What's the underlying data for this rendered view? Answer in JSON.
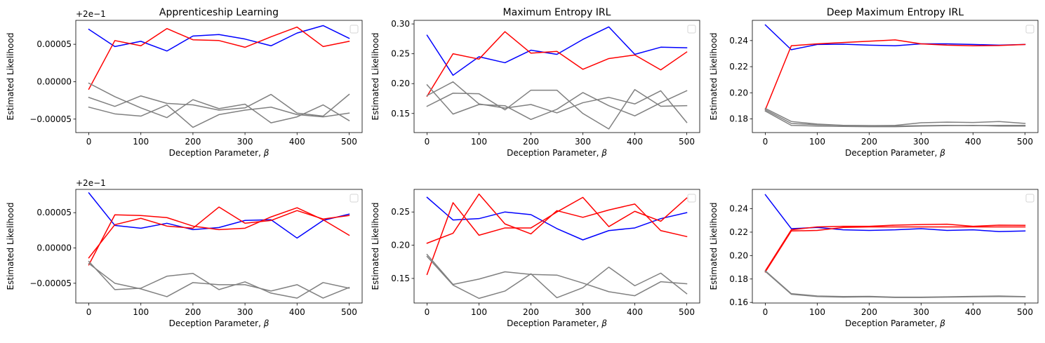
{
  "figure": {
    "xlabel_prefix": "Deception Parameter, ",
    "xlabel_symbol": "β",
    "ylabel": "Estimated Likelihood"
  },
  "colors": {
    "blue": "#0000ff",
    "red": "#ff0000",
    "gray": "#808080",
    "frame": "#000000"
  },
  "chart_data": [
    {
      "type": "line",
      "title": "Apprenticeship Learning",
      "xlabel": "Deception Parameter, β",
      "ylabel": "Estimated Likelihood",
      "offset_label": "+2e−1",
      "offset_value": 0.2,
      "xlim": [
        -25,
        525
      ],
      "ylim": [
        -6.8e-05,
        8.2e-05
      ],
      "xticks": [
        0,
        100,
        200,
        300,
        400,
        500
      ],
      "xtick_labels": [
        "0",
        "100",
        "200",
        "300",
        "400",
        "500"
      ],
      "yticks": [
        -5e-05,
        0.0,
        5e-05
      ],
      "ytick_labels": [
        "−0.00005",
        "0.00000",
        "0.00005"
      ],
      "x": [
        0,
        50,
        100,
        150,
        200,
        250,
        300,
        350,
        400,
        450,
        500
      ],
      "series": [
        {
          "name": "blue",
          "color": "#0000ff",
          "values": [
            7e-05,
            4.7e-05,
            5.4e-05,
            4.1e-05,
            6.1e-05,
            6.3e-05,
            5.7e-05,
            4.8e-05,
            6.5e-05,
            7.5e-05,
            5.8e-05
          ]
        },
        {
          "name": "red",
          "color": "#ff0000",
          "values": [
            -1e-05,
            5.5e-05,
            4.8e-05,
            7.1e-05,
            5.6e-05,
            5.5e-05,
            4.6e-05,
            6e-05,
            7.3e-05,
            4.7e-05,
            5.4e-05
          ]
        },
        {
          "name": "gray1",
          "color": "#808080",
          "values": [
            -2e-06,
            -2e-05,
            -3.5e-05,
            -4.8e-05,
            -2.4e-05,
            -3.6e-05,
            -3e-05,
            -5.5e-05,
            -4.7e-05,
            -3.1e-05,
            -5.2e-05
          ]
        },
        {
          "name": "gray2",
          "color": "#808080",
          "values": [
            -2.1e-05,
            -3.3e-05,
            -1.9e-05,
            -2.9e-05,
            -3.1e-05,
            -3.8e-05,
            -3.5e-05,
            -1.7e-05,
            -4.2e-05,
            -4.6e-05,
            -1.7e-05
          ]
        },
        {
          "name": "gray3",
          "color": "#808080",
          "values": [
            -3.4e-05,
            -4.3e-05,
            -4.6e-05,
            -3.1e-05,
            -6.1e-05,
            -4.4e-05,
            -3.8e-05,
            -3.4e-05,
            -4.4e-05,
            -4.7e-05,
            -4.2e-05
          ]
        }
      ]
    },
    {
      "type": "line",
      "title": "Maximum Entropy IRL",
      "xlabel": "Deception Parameter, β",
      "ylabel": "Estimated Likelihood",
      "offset_label": "",
      "offset_value": 0,
      "xlim": [
        -25,
        525
      ],
      "ylim": [
        0.118,
        0.306
      ],
      "xticks": [
        0,
        100,
        200,
        300,
        400,
        500
      ],
      "xtick_labels": [
        "0",
        "100",
        "200",
        "300",
        "400",
        "500"
      ],
      "yticks": [
        0.15,
        0.2,
        0.25,
        0.3
      ],
      "ytick_labels": [
        "0.15",
        "0.20",
        "0.25",
        "0.30"
      ],
      "x": [
        0,
        50,
        100,
        150,
        200,
        250,
        300,
        350,
        400,
        450,
        500
      ],
      "series": [
        {
          "name": "blue",
          "color": "#0000ff",
          "values": [
            0.281,
            0.214,
            0.245,
            0.235,
            0.256,
            0.249,
            0.274,
            0.295,
            0.249,
            0.261,
            0.26
          ]
        },
        {
          "name": "red",
          "color": "#ff0000",
          "values": [
            0.179,
            0.25,
            0.241,
            0.287,
            0.251,
            0.254,
            0.224,
            0.242,
            0.248,
            0.223,
            0.253
          ]
        },
        {
          "name": "gray1",
          "color": "#808080",
          "values": [
            0.198,
            0.149,
            0.165,
            0.163,
            0.14,
            0.157,
            0.185,
            0.163,
            0.146,
            0.168,
            0.188
          ]
        },
        {
          "name": "gray2",
          "color": "#808080",
          "values": [
            0.162,
            0.184,
            0.183,
            0.156,
            0.189,
            0.189,
            0.15,
            0.124,
            0.19,
            0.162,
            0.163
          ]
        },
        {
          "name": "gray3",
          "color": "#808080",
          "values": [
            0.18,
            0.203,
            0.166,
            0.159,
            0.165,
            0.151,
            0.168,
            0.177,
            0.166,
            0.188,
            0.135
          ]
        }
      ]
    },
    {
      "type": "line",
      "title": "Deep Maximum Entropy IRL",
      "xlabel": "Deception Parameter, β",
      "ylabel": "Estimated Likelihood",
      "offset_label": "",
      "offset_value": 0,
      "xlim": [
        -25,
        525
      ],
      "ylim": [
        0.1695,
        0.2555
      ],
      "xticks": [
        0,
        100,
        200,
        300,
        400,
        500
      ],
      "xtick_labels": [
        "0",
        "100",
        "200",
        "300",
        "400",
        "500"
      ],
      "yticks": [
        0.18,
        0.2,
        0.22,
        0.24
      ],
      "ytick_labels": [
        "0.18",
        "0.20",
        "0.22",
        "0.24"
      ],
      "x": [
        0,
        50,
        100,
        150,
        200,
        250,
        300,
        350,
        400,
        450,
        500
      ],
      "series": [
        {
          "name": "blue",
          "color": "#0000ff",
          "values": [
            0.252,
            0.233,
            0.237,
            0.2372,
            0.2365,
            0.236,
            0.2375,
            0.2375,
            0.237,
            0.2365,
            0.237
          ]
        },
        {
          "name": "red",
          "color": "#ff0000",
          "values": [
            0.187,
            0.236,
            0.2375,
            0.2385,
            0.2395,
            0.2405,
            0.2375,
            0.2365,
            0.236,
            0.2362,
            0.237
          ]
        },
        {
          "name": "gray1",
          "color": "#808080",
          "values": [
            0.188,
            0.178,
            0.176,
            0.175,
            0.1748,
            0.175,
            0.177,
            0.1775,
            0.1772,
            0.178,
            0.1765
          ]
        },
        {
          "name": "gray2",
          "color": "#808080",
          "values": [
            0.187,
            0.1765,
            0.1755,
            0.175,
            0.1748,
            0.1745,
            0.1748,
            0.175,
            0.1748,
            0.175,
            0.175
          ]
        },
        {
          "name": "gray3",
          "color": "#808080",
          "values": [
            0.186,
            0.175,
            0.1745,
            0.1742,
            0.174,
            0.174,
            0.1745,
            0.1748,
            0.175,
            0.1745,
            0.1745
          ]
        }
      ]
    },
    {
      "type": "line",
      "title": "",
      "xlabel": "Deception Parameter, β",
      "ylabel": "Estimated Likelihood",
      "offset_label": "+2e−1",
      "offset_value": 0.2,
      "xlim": [
        -25,
        525
      ],
      "ylim": [
        -7.8e-05,
        8.3e-05
      ],
      "xticks": [
        0,
        100,
        200,
        300,
        400,
        500
      ],
      "xtick_labels": [
        "0",
        "100",
        "200",
        "300",
        "400",
        "500"
      ],
      "yticks": [
        -5e-05,
        0.0,
        5e-05
      ],
      "ytick_labels": [
        "−0.00005",
        "0.00000",
        "0.00005"
      ],
      "x": [
        0,
        50,
        100,
        150,
        200,
        250,
        300,
        350,
        400,
        450,
        500
      ],
      "series": [
        {
          "name": "blue",
          "color": "#0000ff",
          "values": [
            7.8e-05,
            3.2e-05,
            2.8e-05,
            3.5e-05,
            2.6e-05,
            2.9e-05,
            3.9e-05,
            4e-05,
            1.4e-05,
            3.9e-05,
            4.8e-05
          ]
        },
        {
          "name": "red1",
          "color": "#ff0000",
          "values": [
            -2.4e-05,
            4.7e-05,
            4.6e-05,
            4.3e-05,
            3.1e-05,
            2.6e-05,
            2.8e-05,
            4.4e-05,
            5.7e-05,
            4e-05,
            1.8e-05
          ]
        },
        {
          "name": "red2",
          "color": "#ff0000",
          "values": [
            -1.4e-05,
            3.3e-05,
            4.2e-05,
            3.1e-05,
            2.8e-05,
            5.8e-05,
            3.5e-05,
            3.9e-05,
            5.3e-05,
            4.1e-05,
            4.6e-05
          ]
        },
        {
          "name": "gray1",
          "color": "#808080",
          "values": [
            -1.9e-05,
            -5.9e-05,
            -5.7e-05,
            -4e-05,
            -3.6e-05,
            -5.9e-05,
            -4.8e-05,
            -6.4e-05,
            -7.1e-05,
            -4.9e-05,
            -5.7e-05
          ]
        },
        {
          "name": "gray2",
          "color": "#808080",
          "values": [
            -2.2e-05,
            -5e-05,
            -5.8e-05,
            -6.9e-05,
            -4.9e-05,
            -5.2e-05,
            -5.2e-05,
            -6.1e-05,
            -5.2e-05,
            -7.1e-05,
            -5.6e-05
          ]
        }
      ]
    },
    {
      "type": "line",
      "title": "",
      "xlabel": "Deception Parameter, β",
      "ylabel": "Estimated Likelihood",
      "offset_label": "",
      "offset_value": 0,
      "xlim": [
        -25,
        525
      ],
      "ylim": [
        0.113,
        0.284
      ],
      "xticks": [
        0,
        100,
        200,
        300,
        400,
        500
      ],
      "xtick_labels": [
        "0",
        "100",
        "200",
        "300",
        "400",
        "500"
      ],
      "yticks": [
        0.15,
        0.2,
        0.25
      ],
      "ytick_labels": [
        "0.15",
        "0.20",
        "0.25"
      ],
      "x": [
        0,
        50,
        100,
        150,
        200,
        250,
        300,
        350,
        400,
        450,
        500
      ],
      "series": [
        {
          "name": "blue",
          "color": "#0000ff",
          "values": [
            0.272,
            0.238,
            0.24,
            0.25,
            0.246,
            0.225,
            0.208,
            0.222,
            0.226,
            0.24,
            0.249
          ]
        },
        {
          "name": "red1",
          "color": "#ff0000",
          "values": [
            0.156,
            0.264,
            0.215,
            0.226,
            0.226,
            0.25,
            0.272,
            0.228,
            0.251,
            0.236,
            0.271
          ]
        },
        {
          "name": "red2",
          "color": "#ff0000",
          "values": [
            0.203,
            0.218,
            0.277,
            0.232,
            0.217,
            0.252,
            0.242,
            0.253,
            0.262,
            0.222,
            0.213
          ]
        },
        {
          "name": "gray1",
          "color": "#808080",
          "values": [
            0.183,
            0.14,
            0.12,
            0.131,
            0.157,
            0.121,
            0.136,
            0.167,
            0.139,
            0.158,
            0.127
          ]
        },
        {
          "name": "gray2",
          "color": "#808080",
          "values": [
            0.186,
            0.141,
            0.149,
            0.16,
            0.156,
            0.155,
            0.143,
            0.13,
            0.124,
            0.145,
            0.142
          ]
        }
      ]
    },
    {
      "type": "line",
      "title": "",
      "xlabel": "Deception Parameter, β",
      "ylabel": "Estimated Likelihood",
      "offset_label": "",
      "offset_value": 0,
      "xlim": [
        -25,
        525
      ],
      "ylim": [
        0.1595,
        0.2565
      ],
      "xticks": [
        0,
        100,
        200,
        300,
        400,
        500
      ],
      "xtick_labels": [
        "0",
        "100",
        "200",
        "300",
        "400",
        "500"
      ],
      "yticks": [
        0.16,
        0.18,
        0.2,
        0.22,
        0.24
      ],
      "ytick_labels": [
        "0.16",
        "0.18",
        "0.20",
        "0.22",
        "0.24"
      ],
      "x": [
        0,
        50,
        100,
        150,
        200,
        250,
        300,
        350,
        400,
        450,
        500
      ],
      "series": [
        {
          "name": "blue",
          "color": "#0000ff",
          "values": [
            0.252,
            0.223,
            0.224,
            0.222,
            0.2215,
            0.222,
            0.223,
            0.2215,
            0.222,
            0.2205,
            0.221
          ]
        },
        {
          "name": "red1",
          "color": "#ff0000",
          "values": [
            0.186,
            0.221,
            0.2215,
            0.224,
            0.2245,
            0.2245,
            0.2245,
            0.2245,
            0.2245,
            0.2245,
            0.2245
          ]
        },
        {
          "name": "red2",
          "color": "#ff0000",
          "values": [
            0.187,
            0.222,
            0.2245,
            0.225,
            0.225,
            0.226,
            0.2265,
            0.2268,
            0.225,
            0.226,
            0.2258
          ]
        },
        {
          "name": "gray1",
          "color": "#808080",
          "values": [
            0.187,
            0.1675,
            0.1655,
            0.165,
            0.1652,
            0.1645,
            0.1645,
            0.1648,
            0.1652,
            0.1655,
            0.165
          ]
        },
        {
          "name": "gray2",
          "color": "#808080",
          "values": [
            0.1865,
            0.167,
            0.165,
            0.1645,
            0.1648,
            0.1642,
            0.1642,
            0.1645,
            0.1648,
            0.165,
            0.1648
          ]
        }
      ]
    }
  ]
}
